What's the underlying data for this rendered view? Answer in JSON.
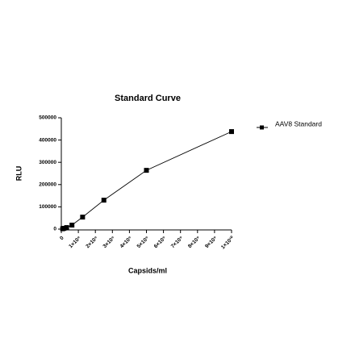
{
  "chart_data": {
    "type": "scatter",
    "title": "Standard Curve",
    "x_label": "Capsids/ml",
    "y_label": "RLU",
    "series": [
      {
        "name": "AAV8 Standard",
        "color": "#000000",
        "x": [
          78125000,
          156250000,
          312500000,
          625000000,
          1250000000,
          2500000000,
          5000000000,
          10000000000
        ],
        "values": [
          1500,
          3600,
          7000,
          18000,
          54000,
          130000,
          264000,
          438000
        ]
      }
    ],
    "xlim": [
      0,
      10000000000
    ],
    "xticks": [
      0,
      {
        "value": 1000000000,
        "label": "1×10⁹"
      },
      {
        "value": 2000000000,
        "label": "2×10⁹"
      },
      {
        "value": 3000000000,
        "label": "3×10⁹"
      },
      {
        "value": 4000000000,
        "label": "4×10⁹"
      },
      {
        "value": 5000000000,
        "label": "5×10⁹"
      },
      {
        "value": 6000000000,
        "label": "6×10⁹"
      },
      {
        "value": 7000000000,
        "label": "7×10⁹"
      },
      {
        "value": 8000000000,
        "label": "8×10⁹"
      },
      {
        "value": 9000000000,
        "label": "9×10⁹"
      },
      {
        "value": 10000000000,
        "label": "1×10¹⁰"
      }
    ],
    "ylim": [
      0,
      500000
    ],
    "yticks": [
      0,
      100000,
      200000,
      300000,
      400000,
      500000
    ],
    "legend": "right"
  }
}
